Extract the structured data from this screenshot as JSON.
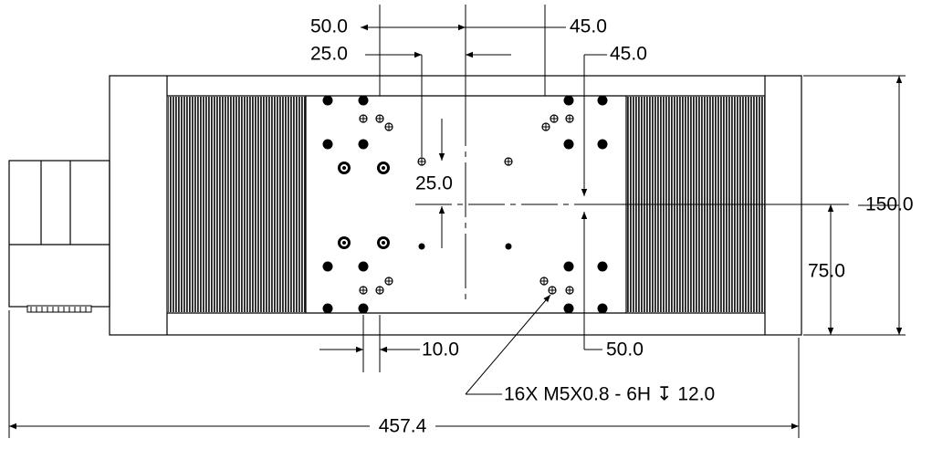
{
  "dimensions": {
    "top_outer_left": "50.0",
    "top_inner_left": "25.0",
    "top_outer_right": "45.0",
    "top_inner_right": "45.0",
    "carriage_vertical": "25.0",
    "overall_height": "150.0",
    "half_height": "75.0",
    "hole_offset": "10.0",
    "bottom_right": "50.0",
    "overall_length": "457.4"
  },
  "callout": "16X M5X0.8 - 6H ↧ 12.0"
}
